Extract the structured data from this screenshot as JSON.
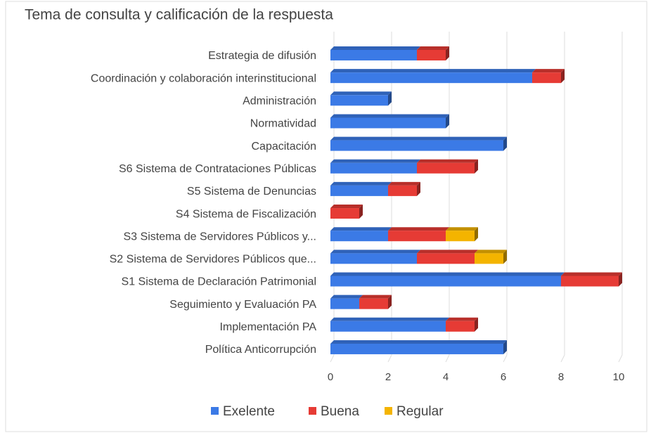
{
  "chart_data": {
    "type": "stacked-bar-horizontal",
    "title": "Tema de consulta y calificación de la respuesta",
    "categories": [
      "Estrategia de difusión",
      "Coordinación y colaboración interinstitucional",
      "Administración",
      "Normatividad",
      "Capacitación",
      "S6 Sistema de Contrataciones Públicas",
      "S5 Sistema de Denuncias",
      "S4 Sistema de Fiscalización",
      "S3 Sistema de Servidores Públicos y...",
      "S2 Sistema de Servidores Públicos que...",
      "S1 Sistema de Declaración Patrimonial",
      "Seguimiento y Evaluación PA",
      "Implementación PA",
      "Política Anticorrupción"
    ],
    "series": [
      {
        "name": "Exelente",
        "color": "#3b7ae6",
        "values": [
          3,
          7,
          2,
          4,
          6,
          3,
          2,
          0,
          2,
          3,
          8,
          1,
          4,
          6
        ]
      },
      {
        "name": "Buena",
        "color": "#e63b35",
        "values": [
          1,
          1,
          0,
          0,
          0,
          2,
          1,
          1,
          2,
          2,
          2,
          1,
          1,
          0
        ]
      },
      {
        "name": "Regular",
        "color": "#f4b400",
        "values": [
          0,
          0,
          0,
          0,
          0,
          0,
          0,
          0,
          1,
          1,
          0,
          0,
          0,
          0
        ]
      }
    ],
    "xlim": [
      0,
      10
    ],
    "xticks": [
      0,
      2,
      4,
      6,
      8,
      10
    ],
    "grid": true,
    "legend": "bottom"
  }
}
